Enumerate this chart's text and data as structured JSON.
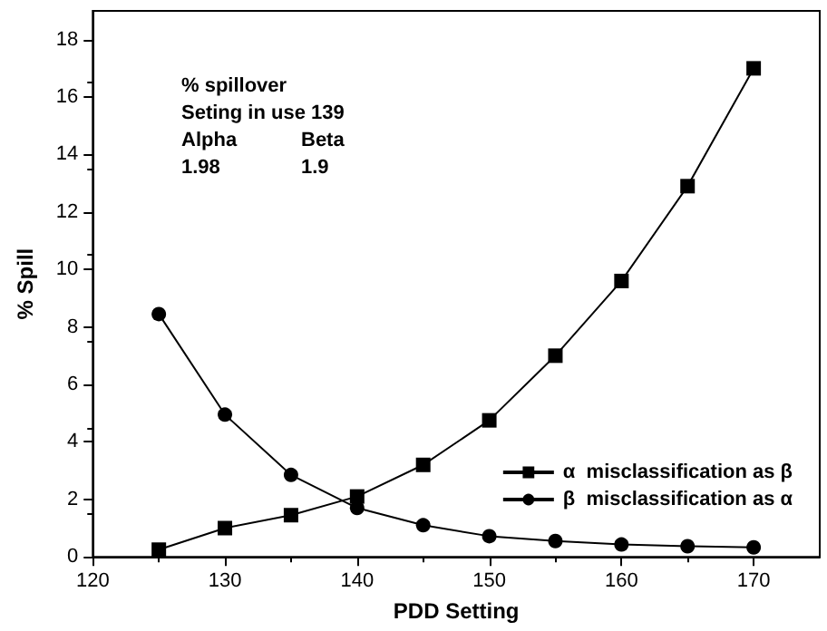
{
  "chart_data": {
    "type": "line",
    "xlabel": "PDD Setting",
    "ylabel": "% Spill",
    "x": [
      125,
      130,
      135,
      140,
      145,
      150,
      155,
      160,
      165,
      170
    ],
    "series": [
      {
        "name": "α  misclassification as β",
        "color": "#000000",
        "marker": "square",
        "values": [
          0.25,
          1.0,
          1.45,
          2.1,
          3.2,
          4.75,
          7.0,
          9.6,
          12.9,
          17.0
        ]
      },
      {
        "name": "β  misclassification as α",
        "color": "#000000",
        "marker": "circle",
        "values": [
          8.45,
          4.95,
          2.85,
          1.7,
          1.1,
          0.72,
          0.55,
          0.43,
          0.37,
          0.33
        ]
      }
    ],
    "xlim": [
      120,
      175
    ],
    "xticks": [
      120,
      130,
      140,
      150,
      160,
      170
    ],
    "ylim": [
      0,
      19
    ],
    "yticks": [
      0,
      2,
      4,
      6,
      8,
      10,
      12,
      14,
      16,
      18
    ],
    "annotations": [
      "% spillover",
      "Seting in use 139",
      "Alpha",
      "Beta",
      "1.98",
      "1.9"
    ],
    "legend": "bottom right",
    "grid": false,
    "line_style": "solid"
  }
}
